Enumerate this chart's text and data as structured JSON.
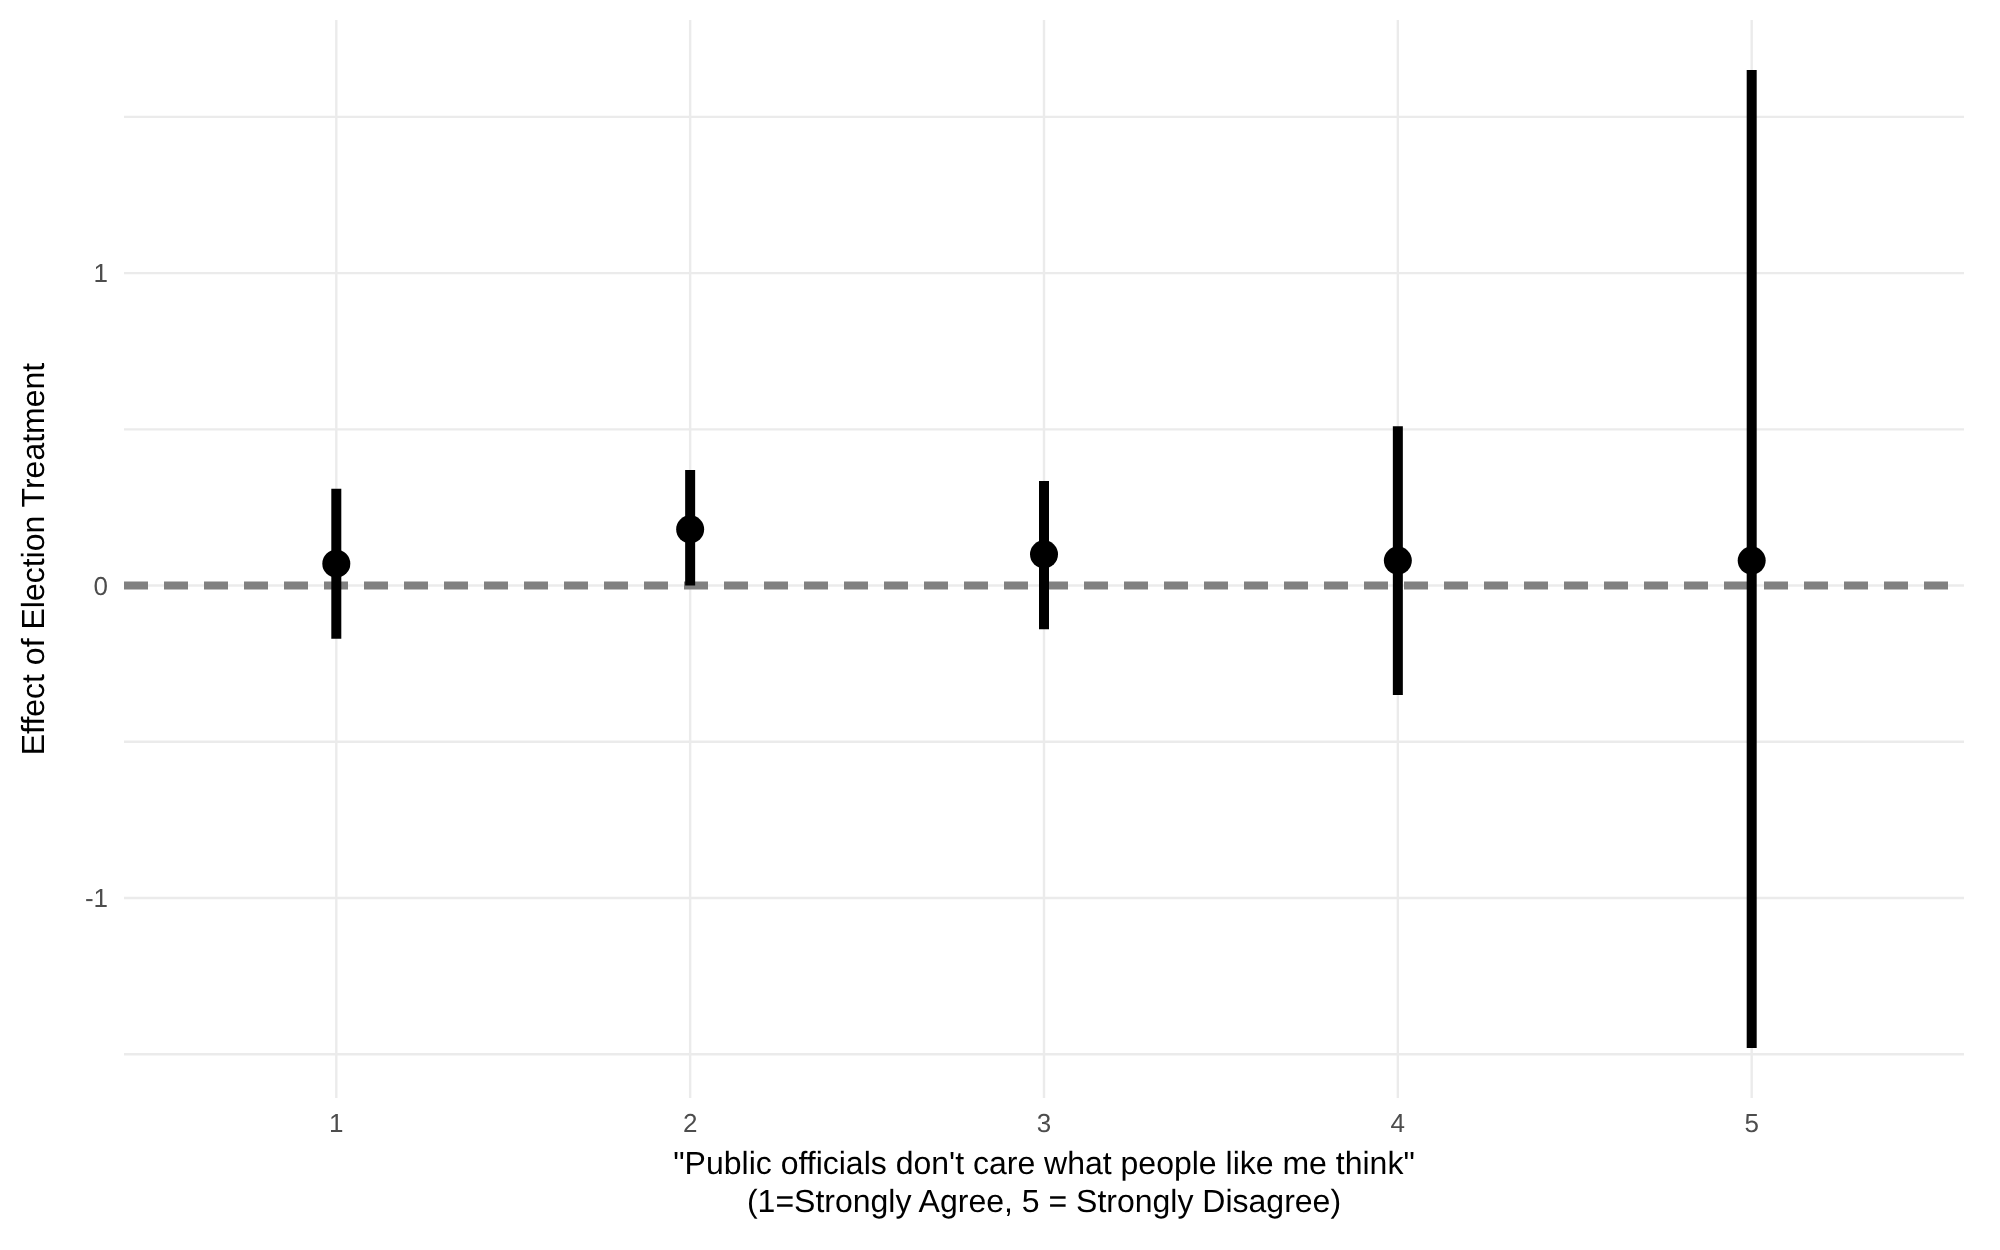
{
  "chart_data": {
    "type": "scatter",
    "xlabel": "\"Public officials don't care what people like me think\"\n(1=Strongly Agree, 5 = Strongly Disagree)",
    "ylabel": "Effect of Election Treatment",
    "categories": [
      "1",
      "2",
      "3",
      "4",
      "5"
    ],
    "series": [
      {
        "color": "#000000",
        "values": [
          0.07,
          0.18,
          0.1,
          0.08,
          0.08
        ],
        "errors": [
          [
            -0.17,
            0.31
          ],
          [
            0.0,
            0.37
          ],
          [
            -0.14,
            0.335
          ],
          [
            -0.35,
            0.51
          ],
          [
            -1.48,
            1.65
          ]
        ]
      }
    ],
    "ylim": [
      -1.64,
      1.81
    ],
    "yticks": [
      {
        "value": -1.5,
        "label": null
      },
      -1,
      {
        "value": -0.5,
        "label": null
      },
      0,
      {
        "value": 0.5,
        "label": null
      },
      1,
      {
        "value": 1.5,
        "label": null
      }
    ],
    "ref_lines": [
      {
        "axis": "y",
        "value": 0,
        "color": "#808080",
        "line_style": "dashed"
      }
    ],
    "grid": true,
    "marker": "circle",
    "legend": false
  }
}
